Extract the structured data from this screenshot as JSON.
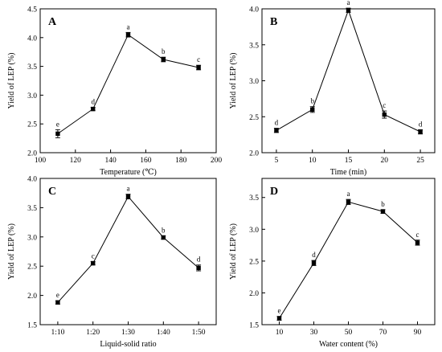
{
  "chart_data": [
    {
      "panel": "A",
      "type": "line",
      "xlabel": "Temperature (℃)",
      "ylabel": "Yield of LEP (%)",
      "xlim": [
        100,
        200
      ],
      "ylim": [
        2.0,
        4.5
      ],
      "x_ticks": [
        "100",
        "120",
        "140",
        "160",
        "180",
        "200"
      ],
      "y_ticks": [
        "2.0",
        "2.5",
        "3.0",
        "3.5",
        "4.0",
        "4.5"
      ],
      "x": [
        110,
        130,
        150,
        170,
        190
      ],
      "values": [
        2.33,
        2.76,
        4.05,
        3.62,
        3.48
      ],
      "errors": [
        0.07,
        0.03,
        0.04,
        0.04,
        0.04
      ],
      "labels": [
        "e",
        "d",
        "a",
        "b",
        "c"
      ]
    },
    {
      "panel": "B",
      "type": "line",
      "xlabel": "Time (min)",
      "ylabel": "Yield of LEP (%)",
      "xlim": [
        3,
        27
      ],
      "ylim": [
        2.0,
        4.0
      ],
      "x_ticks": [
        "5",
        "10",
        "15",
        "20",
        "25"
      ],
      "y_ticks": [
        "2.0",
        "2.5",
        "3.0",
        "3.5",
        "4.0"
      ],
      "x": [
        5,
        10,
        15,
        20,
        25
      ],
      "values": [
        2.31,
        2.6,
        3.98,
        2.53,
        2.29
      ],
      "errors": [
        0.03,
        0.04,
        0.03,
        0.05,
        0.03
      ],
      "labels": [
        "d",
        "b",
        "a",
        "c",
        "d"
      ]
    },
    {
      "panel": "C",
      "type": "line",
      "xlabel": "Liquid-solid ratio",
      "ylabel": "Yield of LEP (%)",
      "categories": [
        "1:10",
        "1:20",
        "1:30",
        "1:40",
        "1:50"
      ],
      "xlim": [
        0.5,
        5.5
      ],
      "ylim": [
        1.5,
        4.0
      ],
      "x_ticks": [
        "1:10",
        "1:20",
        "1:30",
        "1:40",
        "1:50"
      ],
      "y_ticks": [
        "1.5",
        "2.0",
        "2.5",
        "3.0",
        "3.5",
        "4.0"
      ],
      "x": [
        1,
        2,
        3,
        4,
        5
      ],
      "values": [
        1.88,
        2.55,
        3.69,
        2.99,
        2.47
      ],
      "errors": [
        0.03,
        0.03,
        0.04,
        0.03,
        0.05
      ],
      "labels": [
        "e",
        "c",
        "a",
        "b",
        "d"
      ]
    },
    {
      "panel": "D",
      "type": "line",
      "xlabel": "Water content (%)",
      "ylabel": "Yield of LEP (%)",
      "xlim": [
        0,
        100
      ],
      "ylim": [
        1.5,
        3.8
      ],
      "x_ticks": [
        "10",
        "30",
        "50",
        "70",
        "90"
      ],
      "y_ticks": [
        "1.5",
        "2.0",
        "2.5",
        "3.0",
        "3.5"
      ],
      "x": [
        10,
        30,
        50,
        70,
        90
      ],
      "values": [
        1.6,
        2.47,
        3.43,
        3.28,
        2.79
      ],
      "errors": [
        0.03,
        0.04,
        0.04,
        0.03,
        0.04
      ],
      "labels": [
        "e",
        "d",
        "a",
        "b",
        "c"
      ]
    }
  ]
}
